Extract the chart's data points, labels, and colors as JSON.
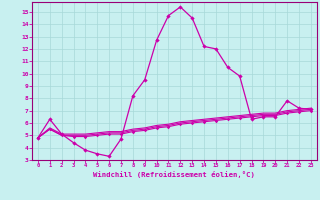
{
  "xlabel": "Windchill (Refroidissement éolien,°C)",
  "background_color": "#c8f0f0",
  "grid_color": "#a8d8d8",
  "line_color": "#cc00aa",
  "spine_color": "#990077",
  "xlim": [
    -0.5,
    23.5
  ],
  "ylim": [
    3,
    15.8
  ],
  "xticks": [
    0,
    1,
    2,
    3,
    4,
    5,
    6,
    7,
    8,
    9,
    10,
    11,
    12,
    13,
    14,
    15,
    16,
    17,
    18,
    19,
    20,
    21,
    22,
    23
  ],
  "yticks": [
    3,
    4,
    5,
    6,
    7,
    8,
    9,
    10,
    11,
    12,
    13,
    14,
    15
  ],
  "series": {
    "main": [
      4.8,
      6.3,
      5.1,
      4.4,
      3.8,
      3.5,
      3.3,
      4.7,
      8.2,
      9.5,
      12.7,
      14.7,
      15.4,
      14.5,
      12.2,
      12.0,
      10.5,
      9.8,
      6.3,
      6.5,
      6.5,
      7.8,
      7.2,
      7.1
    ],
    "flat1": [
      4.8,
      5.5,
      5.0,
      4.9,
      4.9,
      5.0,
      5.1,
      5.1,
      5.3,
      5.4,
      5.6,
      5.7,
      5.9,
      6.0,
      6.1,
      6.2,
      6.3,
      6.4,
      6.5,
      6.6,
      6.6,
      6.8,
      6.9,
      7.0
    ],
    "flat2": [
      4.8,
      5.5,
      5.0,
      5.0,
      5.0,
      5.1,
      5.2,
      5.2,
      5.4,
      5.5,
      5.7,
      5.8,
      6.0,
      6.1,
      6.2,
      6.3,
      6.4,
      6.5,
      6.6,
      6.7,
      6.7,
      6.9,
      7.0,
      7.1
    ],
    "flat3": [
      4.8,
      5.6,
      5.1,
      5.1,
      5.1,
      5.2,
      5.3,
      5.3,
      5.5,
      5.6,
      5.8,
      5.9,
      6.1,
      6.2,
      6.3,
      6.4,
      6.5,
      6.6,
      6.7,
      6.8,
      6.8,
      7.0,
      7.1,
      7.2
    ]
  }
}
